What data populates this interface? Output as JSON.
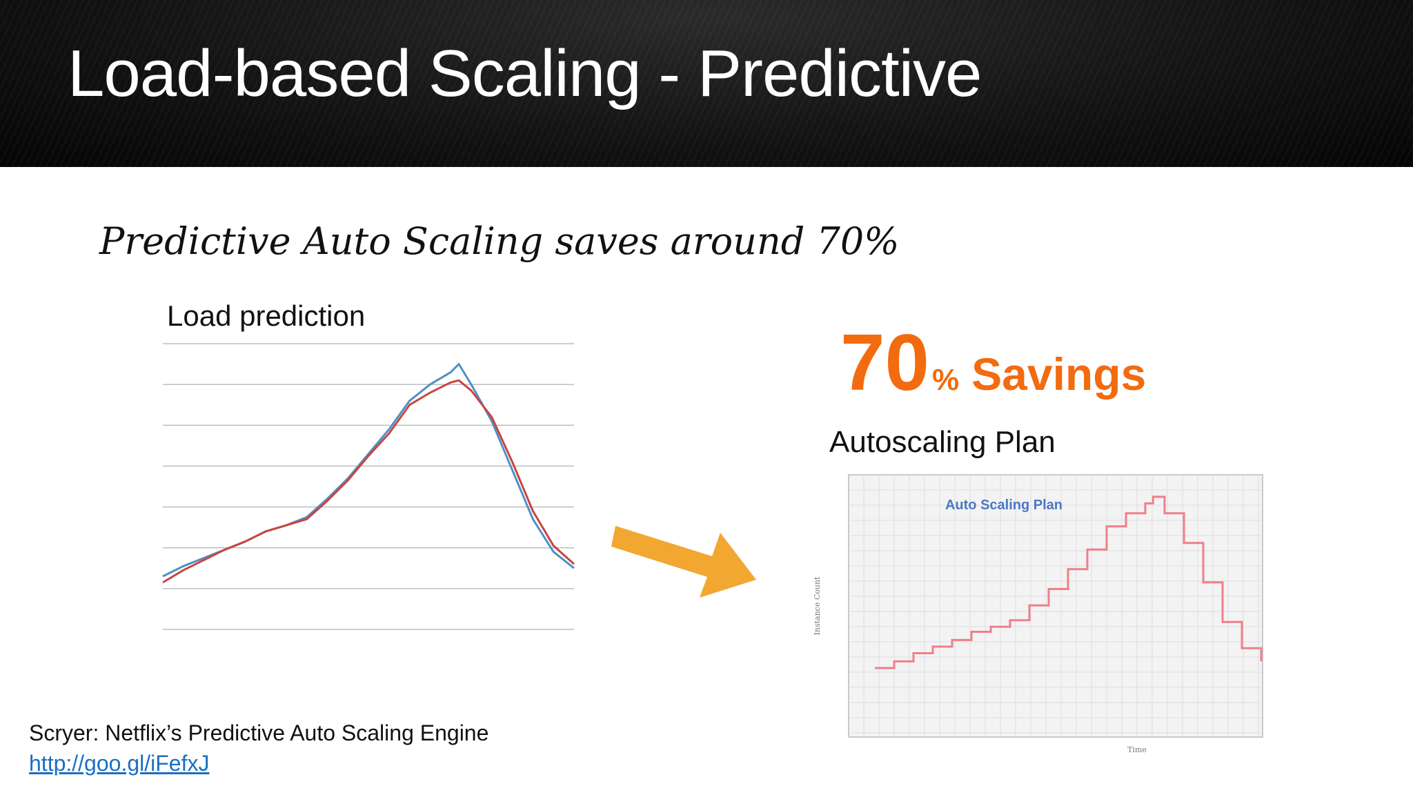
{
  "slide": {
    "title": "Load-based Scaling - Predictive",
    "subtitle": "Predictive Auto Scaling saves around 70%",
    "load_label": "Load prediction",
    "savings_number": "70",
    "savings_pct": "%",
    "savings_word": "Savings",
    "plan_label": "Autoscaling Plan",
    "source_text": "Scryer: Netflix’s Predictive Auto Scaling Engine",
    "source_link": "http://goo.gl/iFefxJ"
  },
  "colors": {
    "savings": "#f26b0f",
    "arrow": "#f2a731",
    "actual_line": "#4f8fc7",
    "predicted_line": "#c9443f",
    "plan_line": "#ef7f86",
    "link": "#1a6fc2"
  },
  "chart_data": [
    {
      "type": "line",
      "title": "Load prediction",
      "xlabel": "",
      "ylabel": "",
      "x": [
        0,
        5,
        10,
        15,
        20,
        25,
        30,
        35,
        40,
        45,
        50,
        55,
        60,
        65,
        70,
        72,
        75,
        80,
        85,
        90,
        95,
        100
      ],
      "ylim": [
        0,
        7
      ],
      "grid": true,
      "legend": "none",
      "series": [
        {
          "color": "#4f8fc7",
          "values": [
            1.3,
            1.55,
            1.75,
            1.95,
            2.15,
            2.4,
            2.55,
            2.75,
            3.2,
            3.7,
            4.3,
            4.9,
            5.6,
            6.0,
            6.3,
            6.5,
            6.0,
            5.1,
            3.9,
            2.7,
            1.9,
            1.5
          ]
        },
        {
          "color": "#c9443f",
          "values": [
            1.15,
            1.45,
            1.7,
            1.95,
            2.15,
            2.4,
            2.55,
            2.7,
            3.15,
            3.65,
            4.25,
            4.8,
            5.5,
            5.8,
            6.05,
            6.1,
            5.85,
            5.2,
            4.1,
            2.9,
            2.05,
            1.6
          ]
        }
      ]
    },
    {
      "type": "line",
      "title": "Auto Scaling Plan",
      "xlabel": "Time",
      "ylabel": "Instance Count",
      "x": [
        0,
        5,
        10,
        15,
        20,
        25,
        30,
        35,
        40,
        45,
        50,
        55,
        60,
        65,
        70,
        72,
        75,
        80,
        85,
        90,
        95,
        100
      ],
      "ylim": [
        0,
        7
      ],
      "grid": true,
      "legend": "none",
      "series": [
        {
          "color": "#ef7f86",
          "values": [
            1.3,
            1.5,
            1.75,
            1.95,
            2.15,
            2.4,
            2.55,
            2.75,
            3.2,
            3.7,
            4.3,
            4.9,
            5.6,
            6.0,
            6.3,
            6.5,
            6.0,
            5.1,
            3.9,
            2.7,
            1.9,
            1.5
          ]
        }
      ]
    }
  ]
}
